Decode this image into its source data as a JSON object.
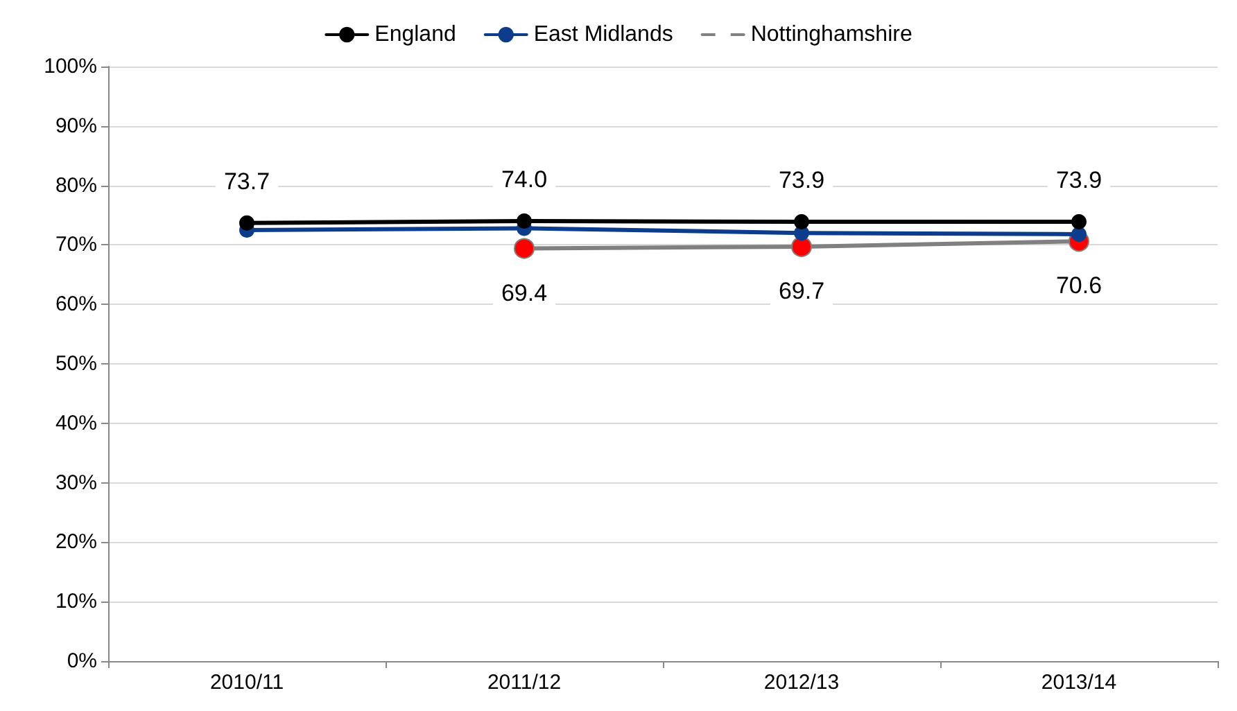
{
  "chart_data": {
    "type": "line",
    "categories": [
      "2010/11",
      "2011/12",
      "2012/13",
      "2013/14"
    ],
    "series": [
      {
        "name": "England",
        "color": "#000000",
        "values": [
          73.7,
          74.0,
          73.9,
          73.9
        ],
        "value_labels": [
          "73.7",
          "74.0",
          "73.9",
          "73.9"
        ]
      },
      {
        "name": "East Midlands",
        "color": "#0b3d8c",
        "values": [
          72.5,
          72.8,
          72.0,
          71.8
        ]
      },
      {
        "name": "Nottinghamshire",
        "color": "#808080",
        "colors": [
          null,
          "#ff0000",
          "#ff0000",
          "#ff0000"
        ],
        "values": [
          null,
          69.4,
          69.7,
          70.6
        ],
        "value_labels": [
          null,
          "69.4",
          "69.7",
          "70.6"
        ]
      }
    ],
    "ylim": [
      0,
      100
    ],
    "yticks": [
      {
        "value": 0,
        "label": "0%"
      },
      {
        "value": 10,
        "label": "10%"
      },
      {
        "value": 20,
        "label": "20%"
      },
      {
        "value": 30,
        "label": "30%"
      },
      {
        "value": 40,
        "label": "40%"
      },
      {
        "value": 50,
        "label": "50%"
      },
      {
        "value": 60,
        "label": "60%"
      },
      {
        "value": 70,
        "label": "70%"
      },
      {
        "value": 80,
        "label": "80%"
      },
      {
        "value": 90,
        "label": "90%"
      },
      {
        "value": 100,
        "label": "100%"
      }
    ],
    "grid": "y",
    "legend": "top",
    "marker": "circle"
  }
}
